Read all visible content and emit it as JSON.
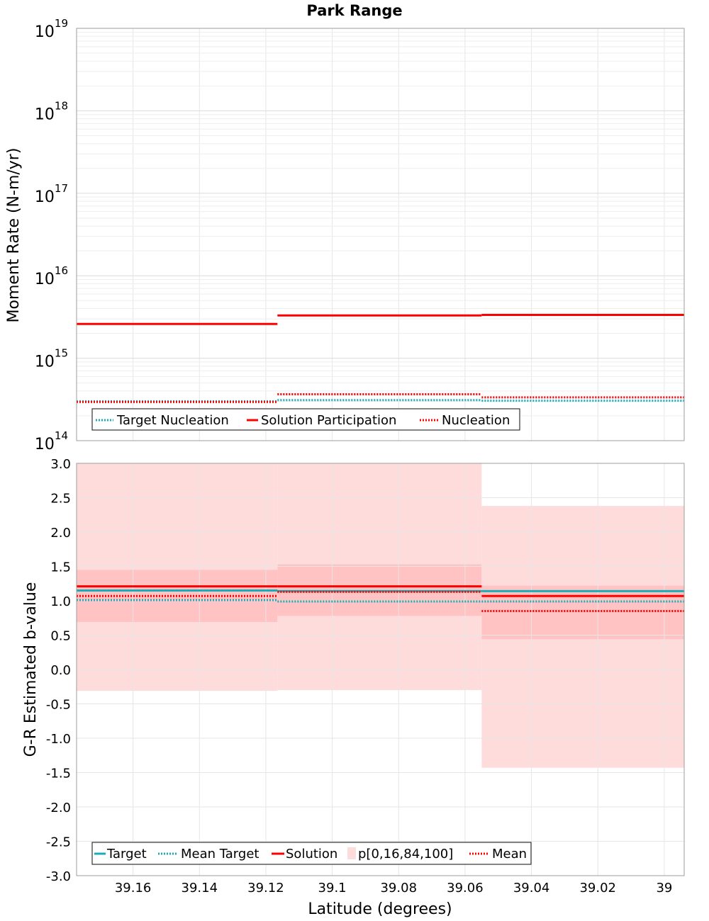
{
  "chart_data": {
    "title": "Park Range",
    "type": "line",
    "xlabel": "Latitude (degrees)",
    "x_reversed": true,
    "xlim": [
      39.177,
      38.994
    ],
    "x_ticks": [
      {
        "value": 39.16,
        "label": "39.16"
      },
      {
        "value": 39.14,
        "label": "39.14"
      },
      {
        "value": 39.12,
        "label": "39.12"
      },
      {
        "value": 39.1,
        "label": "39.1"
      },
      {
        "value": 39.08,
        "label": "39.08"
      },
      {
        "value": 39.06,
        "label": "39.06"
      },
      {
        "value": 39.04,
        "label": "39.04"
      },
      {
        "value": 39.02,
        "label": "39.02"
      },
      {
        "value": 39.0,
        "label": "39"
      }
    ],
    "segments": [
      [
        39.177,
        39.1165
      ],
      [
        39.1165,
        39.055
      ],
      [
        39.055,
        38.994
      ]
    ],
    "panels": [
      {
        "ylabel": "Moment Rate (N-m/yr)",
        "yscale": "log",
        "ylim_exp": [
          14,
          19
        ],
        "y_ticks": [
          {
            "exp": 14,
            "base": "10",
            "sup": "14"
          },
          {
            "exp": 15,
            "base": "10",
            "sup": "15"
          },
          {
            "exp": 16,
            "base": "10",
            "sup": "16"
          },
          {
            "exp": 17,
            "base": "10",
            "sup": "17"
          },
          {
            "exp": 18,
            "base": "10",
            "sup": "18"
          },
          {
            "exp": 19,
            "base": "10",
            "sup": "19"
          }
        ],
        "series": [
          {
            "name": "Target Nucleation",
            "color": "#1aadb8",
            "style": "dotted",
            "values": [
              300000000000000.0,
              310000000000000.0,
              305000000000000.0
            ]
          },
          {
            "name": "Solution Participation",
            "color": "#ff0000",
            "style": "solid",
            "values": [
              2600000000000000.0,
              3300000000000000.0,
              3350000000000000.0
            ]
          },
          {
            "name": "Nucleation",
            "color": "#ff0000",
            "style": "dotted",
            "values": [
              295000000000000.0,
              365000000000000.0,
              335000000000000.0
            ]
          }
        ],
        "legend": [
          "Target Nucleation",
          "Solution Participation",
          "Nucleation"
        ]
      },
      {
        "ylabel": "G-R Estimated b-value",
        "yscale": "linear",
        "ylim": [
          -3.0,
          3.0
        ],
        "y_ticks": [
          "-3.0",
          "-2.5",
          "-2.0",
          "-1.5",
          "-1.0",
          "-0.5",
          "0.0",
          "0.5",
          "1.0",
          "1.5",
          "2.0",
          "2.5",
          "3.0"
        ],
        "bands": {
          "name": "p[0,16,84,100]",
          "outer_color": "#ffdcdc",
          "inner_color": "#ffc3c3",
          "p0": [
            -0.31,
            -0.3,
            -1.43
          ],
          "p100": [
            3.0,
            3.0,
            2.38
          ],
          "p16": [
            0.69,
            0.78,
            0.44
          ],
          "p84": [
            1.45,
            1.53,
            1.22
          ]
        },
        "series": [
          {
            "name": "Target",
            "color": "#1aadb8",
            "style": "solid",
            "values": [
              1.15,
              1.14,
              1.14
            ]
          },
          {
            "name": "Mean Target",
            "color": "#1aadb8",
            "style": "dotted",
            "values": [
              1.01,
              0.99,
              0.99
            ]
          },
          {
            "name": "Solution",
            "color": "#ff0000",
            "style": "solid",
            "values": [
              1.21,
              1.21,
              1.07
            ]
          },
          {
            "name": "Mean",
            "color": "#ff0000",
            "style": "dotted",
            "values": [
              1.07,
              1.13,
              0.85
            ]
          }
        ],
        "legend": [
          "Target",
          "Mean Target",
          "Solution",
          "p[0,16,84,100]",
          "Mean"
        ]
      }
    ]
  }
}
